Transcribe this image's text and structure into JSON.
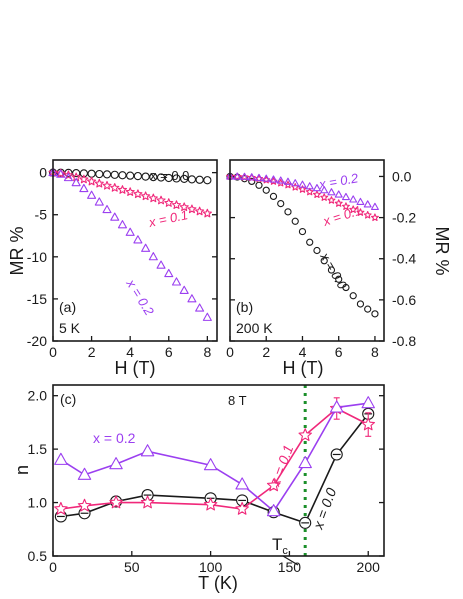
{
  "colors": {
    "black": "#1a1a1a",
    "pink": "#f0287a",
    "violet": "#9b3ff0",
    "green": "#1b8f2a"
  },
  "chart_data": [
    {
      "panel": "a",
      "type": "scatter",
      "label": "(a)",
      "annotation": "5 K",
      "xlabel": "H (T)",
      "ylabel": "MR %",
      "xlim": [
        0,
        8.5
      ],
      "ylim": [
        -20,
        1.5
      ],
      "xticks": [
        0,
        2,
        4,
        6,
        8
      ],
      "yticks": [
        0,
        -5,
        -10,
        -15,
        -20
      ],
      "x_ticklabels": [
        "0",
        "2",
        "4",
        "6",
        "8"
      ],
      "y_ticklabels": [
        "0",
        "-5",
        "-10",
        "-15",
        "-20"
      ],
      "series": [
        {
          "name": "x = 0.0",
          "marker": "circle",
          "color": "black",
          "x": [
            0,
            0.4,
            0.8,
            1.2,
            1.6,
            2.0,
            2.4,
            2.8,
            3.2,
            3.6,
            4.0,
            4.4,
            4.8,
            5.2,
            5.6,
            6.0,
            6.4,
            6.8,
            7.2,
            7.6,
            8.0
          ],
          "y": [
            0,
            -0.01,
            -0.03,
            -0.06,
            -0.09,
            -0.13,
            -0.17,
            -0.21,
            -0.26,
            -0.31,
            -0.36,
            -0.41,
            -0.47,
            -0.53,
            -0.58,
            -0.64,
            -0.69,
            -0.74,
            -0.8,
            -0.85,
            -0.9
          ]
        },
        {
          "name": "x = 0.1",
          "marker": "star",
          "color": "pink",
          "x": [
            0,
            0.4,
            0.8,
            1.2,
            1.6,
            2.0,
            2.4,
            2.8,
            3.2,
            3.6,
            4.0,
            4.4,
            4.8,
            5.2,
            5.6,
            6.0,
            6.4,
            6.8,
            7.2,
            7.6,
            8.0
          ],
          "y": [
            0,
            -0.1,
            -0.3,
            -0.55,
            -0.8,
            -1.05,
            -1.3,
            -1.55,
            -1.8,
            -2.05,
            -2.3,
            -2.55,
            -2.8,
            -3.05,
            -3.3,
            -3.6,
            -3.85,
            -4.1,
            -4.35,
            -4.6,
            -4.85
          ]
        },
        {
          "name": "x = 0.2",
          "marker": "triangle",
          "color": "violet",
          "x": [
            0,
            0.4,
            0.8,
            1.2,
            1.6,
            2.0,
            2.4,
            2.8,
            3.2,
            3.6,
            4.0,
            4.4,
            4.8,
            5.2,
            5.6,
            6.0,
            6.4,
            6.8,
            7.2,
            7.6,
            8.0
          ],
          "y": [
            0,
            -0.2,
            -0.6,
            -1.2,
            -1.9,
            -2.7,
            -3.5,
            -4.4,
            -5.3,
            -6.2,
            -7.1,
            -8.0,
            -9.0,
            -10.0,
            -11.0,
            -12.0,
            -13.0,
            -14.0,
            -15.0,
            -16.1,
            -17.2
          ]
        }
      ]
    },
    {
      "panel": "b",
      "type": "scatter",
      "label": "(b)",
      "annotation": "200 K",
      "xlabel": "H (T)",
      "ylabel": "MR %",
      "xlim": [
        0,
        8.5
      ],
      "ylim": [
        -0.8,
        0.08
      ],
      "xticks": [
        0,
        2,
        4,
        6,
        8
      ],
      "yticks": [
        0,
        -0.2,
        -0.4,
        -0.6,
        -0.8
      ],
      "x_ticklabels": [
        "0",
        "2",
        "4",
        "6",
        "8"
      ],
      "y_ticklabels": [
        "0.0",
        "-0.2",
        "-0.4",
        "-0.6",
        "-0.8"
      ],
      "series": [
        {
          "name": "x = 0.0",
          "marker": "circle",
          "color": "black",
          "x": [
            0,
            0.4,
            0.8,
            1.2,
            1.6,
            2.0,
            2.4,
            2.8,
            3.2,
            3.6,
            4.0,
            4.4,
            4.8,
            5.2,
            5.6,
            6.0,
            6.4,
            6.8,
            7.2,
            7.6,
            8.0
          ],
          "y": [
            0,
            -0.003,
            -0.011,
            -0.024,
            -0.043,
            -0.067,
            -0.097,
            -0.132,
            -0.172,
            -0.218,
            -0.268,
            -0.32,
            -0.36,
            -0.41,
            -0.455,
            -0.5,
            -0.54,
            -0.58,
            -0.62,
            -0.645,
            -0.668
          ]
        },
        {
          "name": "x = 0.1",
          "marker": "star",
          "color": "pink",
          "x": [
            0,
            0.4,
            0.8,
            1.2,
            1.6,
            2.0,
            2.4,
            2.8,
            3.2,
            3.6,
            4.0,
            4.4,
            4.8,
            5.2,
            5.6,
            6.0,
            6.4,
            6.8,
            7.2,
            7.6,
            8.0
          ],
          "y": [
            0,
            -0.001,
            -0.003,
            -0.006,
            -0.011,
            -0.017,
            -0.024,
            -0.032,
            -0.041,
            -0.052,
            -0.063,
            -0.075,
            -0.088,
            -0.102,
            -0.116,
            -0.131,
            -0.146,
            -0.161,
            -0.175,
            -0.188,
            -0.2
          ]
        },
        {
          "name": "x = 0.2",
          "marker": "triangle",
          "color": "violet",
          "x": [
            0,
            0.4,
            0.8,
            1.2,
            1.6,
            2.0,
            2.4,
            2.8,
            3.2,
            3.6,
            4.0,
            4.4,
            4.8,
            5.2,
            5.6,
            6.0,
            6.4,
            6.8,
            7.2,
            7.6,
            8.0
          ],
          "y": [
            0,
            -0.001,
            -0.002,
            -0.004,
            -0.007,
            -0.011,
            -0.015,
            -0.02,
            -0.026,
            -0.033,
            -0.04,
            -0.048,
            -0.057,
            -0.067,
            -0.077,
            -0.088,
            -0.1,
            -0.112,
            -0.124,
            -0.136,
            -0.148
          ]
        }
      ]
    },
    {
      "panel": "c",
      "type": "line",
      "label": "(c)",
      "annotation": "8 T",
      "xlabel": "T (K)",
      "ylabel": "n",
      "xlim": [
        0,
        210
      ],
      "ylim": [
        0.5,
        2.1
      ],
      "xticks": [
        0,
        50,
        100,
        150,
        200
      ],
      "yticks": [
        0.5,
        1.0,
        1.5,
        2.0
      ],
      "x_ticklabels": [
        "0",
        "50",
        "100",
        "150",
        "200"
      ],
      "y_ticklabels": [
        "0.5",
        "1.0",
        "1.5",
        "2.0"
      ],
      "tc": {
        "label": "T",
        "sub": "c",
        "x": 160
      },
      "series": [
        {
          "name": "x = 0.0",
          "marker": "circle",
          "color": "black",
          "x": [
            5,
            20,
            40,
            60,
            100,
            120,
            140,
            160,
            180,
            200
          ],
          "y": [
            0.87,
            0.9,
            1.01,
            1.07,
            1.04,
            1.02,
            0.91,
            0.81,
            1.45,
            1.83
          ],
          "err": [
            0,
            0,
            0,
            0,
            0,
            0,
            0,
            0,
            0,
            0.03
          ]
        },
        {
          "name": "x = 0.1",
          "marker": "star",
          "color": "pink",
          "x": [
            5,
            20,
            40,
            60,
            100,
            120,
            140,
            160,
            180,
            200
          ],
          "y": [
            0.94,
            0.97,
            1.0,
            1.0,
            0.98,
            0.94,
            1.16,
            1.63,
            1.88,
            1.73
          ],
          "err": [
            0,
            0,
            0,
            0,
            0,
            0,
            0,
            0,
            0.1,
            0.11
          ]
        },
        {
          "name": "x = 0.2",
          "marker": "triangle",
          "color": "violet",
          "x": [
            5,
            20,
            40,
            60,
            100,
            120,
            140,
            160,
            180,
            200
          ],
          "y": [
            1.4,
            1.26,
            1.36,
            1.48,
            1.35,
            1.17,
            0.92,
            1.37,
            1.89,
            1.93
          ],
          "err": [
            0,
            0,
            0,
            0,
            0,
            0,
            0,
            0,
            0,
            0
          ]
        }
      ]
    }
  ]
}
